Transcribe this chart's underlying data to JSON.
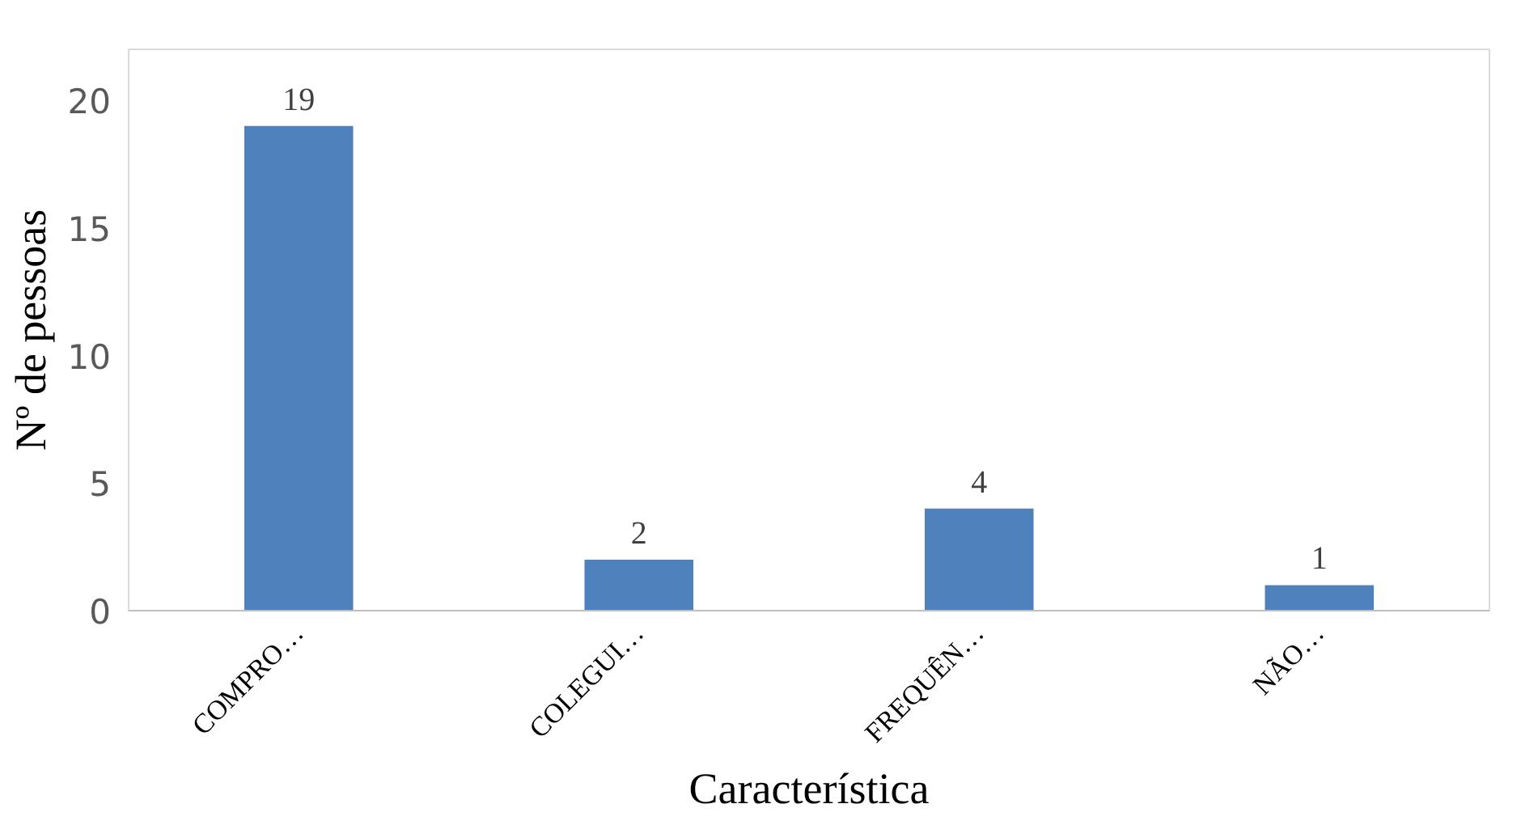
{
  "chart_data": {
    "type": "bar",
    "xlabel": "Característica",
    "ylabel": "Nº de pessoas",
    "categories": [
      "COMPRO…",
      "COLEGUI…",
      "FREQUÊN…",
      "NÃO…"
    ],
    "values": [
      19,
      2,
      4,
      1
    ],
    "color": "#4f81bd",
    "ylim": [
      0,
      22
    ],
    "yticks": [
      0,
      5,
      10,
      15,
      20
    ],
    "grid": false,
    "data_labels": true
  }
}
